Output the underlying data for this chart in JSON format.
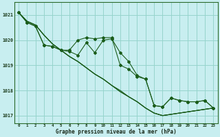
{
  "title": "Graphe pression niveau de la mer (hPa)",
  "background_color": "#c8eef0",
  "grid_color": "#96d4cc",
  "line_color": "#1a5c1a",
  "x_ticks": [
    0,
    1,
    2,
    3,
    4,
    5,
    6,
    7,
    8,
    9,
    10,
    11,
    12,
    13,
    14,
    15,
    16,
    17,
    18,
    19,
    20,
    21,
    22,
    23
  ],
  "ylim": [
    1016.7,
    1021.5
  ],
  "yticks": [
    1017,
    1018,
    1019,
    1020,
    1021
  ],
  "series_no_marker": [
    [
      1021.1,
      1020.75,
      1020.6,
      1020.2,
      1019.85,
      1019.6,
      1019.35,
      1019.15,
      1018.9,
      1018.65,
      1018.45,
      1018.2,
      1018.0,
      1017.75,
      1017.55,
      1017.3,
      1017.1,
      1017.0,
      1017.05,
      1017.1,
      1017.15,
      1017.2,
      1017.25,
      1017.3
    ],
    [
      1021.1,
      1020.75,
      1020.6,
      1020.2,
      1019.85,
      1019.6,
      1019.35,
      1019.15,
      1018.9,
      1018.65,
      1018.45,
      1018.2,
      1017.95,
      1017.75,
      1017.55,
      1017.3,
      1017.1,
      1017.0,
      1017.05,
      1017.1,
      1017.15,
      1017.2,
      1017.25,
      1017.3
    ],
    [
      1021.1,
      1020.75,
      1020.6,
      1020.2,
      1019.85,
      1019.6,
      1019.35,
      1019.15,
      1018.9,
      1018.65,
      1018.45,
      1018.2,
      1017.95,
      1017.75,
      1017.55,
      1017.3,
      1017.1,
      1017.0,
      1017.05,
      1017.1,
      1017.15,
      1017.2,
      1017.25,
      1017.3
    ]
  ],
  "series_with_marker": [
    [
      1021.1,
      1020.7,
      1020.55,
      1019.8,
      1019.75,
      1019.6,
      1019.6,
      1020.0,
      1020.1,
      1020.05,
      1020.1,
      1020.1,
      1019.0,
      1018.85,
      1018.55,
      1018.45,
      1017.4,
      1017.35,
      1017.7,
      1017.6,
      1017.55,
      1017.55,
      1017.6,
      1017.3
    ],
    [
      1021.1,
      1020.7,
      1020.55,
      1019.8,
      1019.75,
      1019.6,
      1019.55,
      1019.4,
      1019.9,
      1019.5,
      1020.0,
      1020.05,
      1019.5,
      1019.15,
      1018.6,
      1018.45,
      1017.4,
      1017.35,
      1017.7,
      1017.6,
      1017.55,
      1017.55,
      1017.6,
      1017.3
    ]
  ]
}
